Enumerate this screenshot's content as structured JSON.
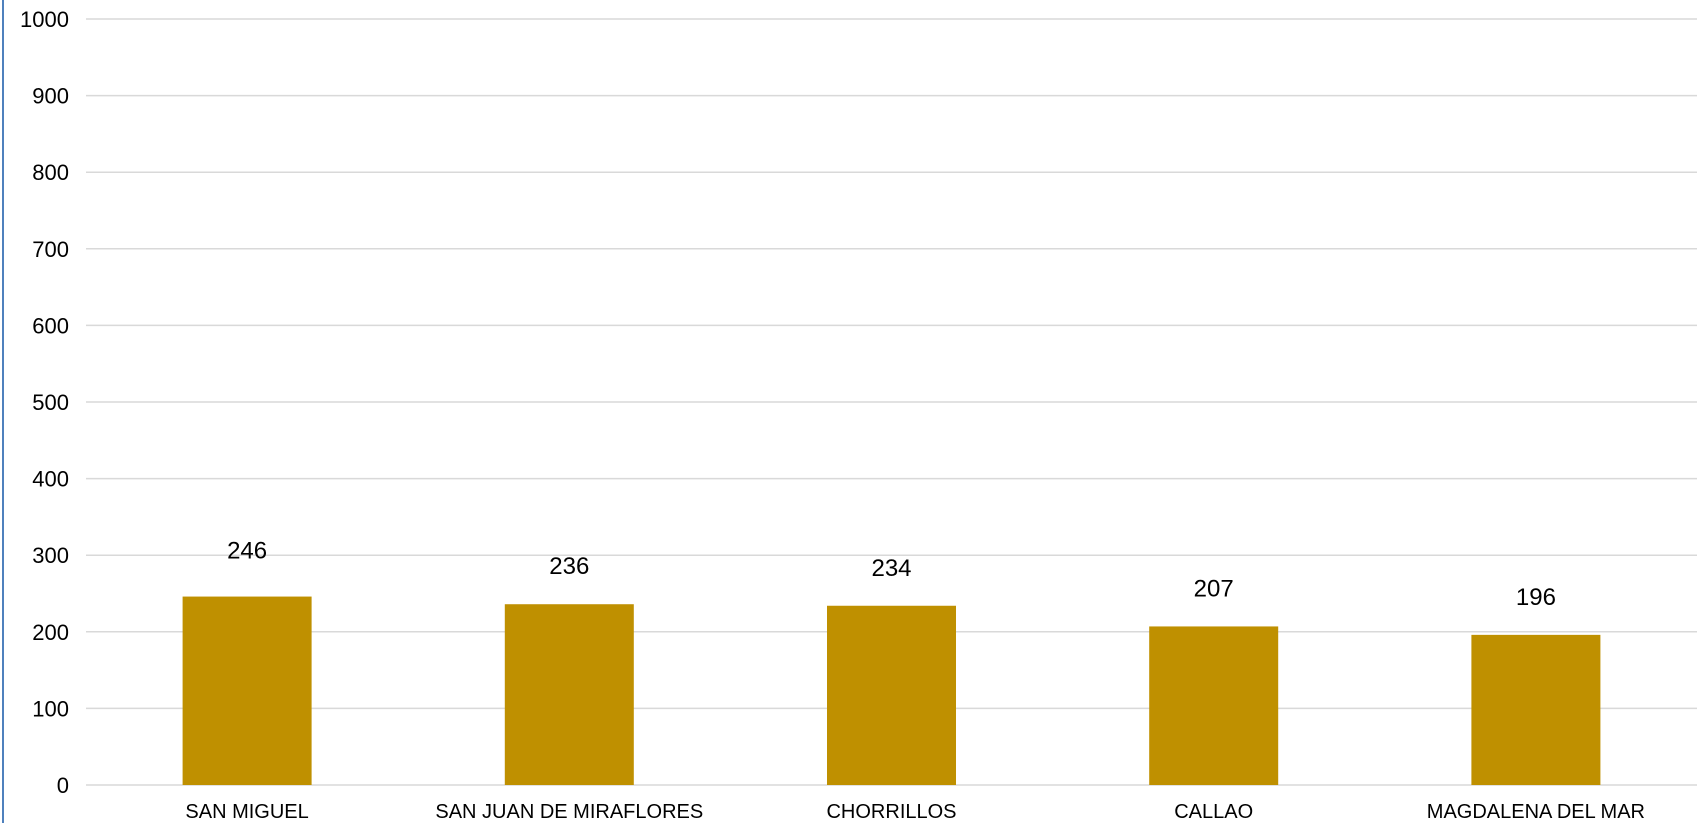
{
  "chart_data": {
    "type": "bar",
    "categories": [
      "SAN MIGUEL",
      "SAN JUAN DE MIRAFLORES",
      "CHORRILLOS",
      "CALLAO",
      "MAGDALENA DEL MAR"
    ],
    "values": [
      246,
      236,
      234,
      207,
      196
    ],
    "value_labels": [
      "246",
      "236",
      "234",
      "207",
      "196"
    ],
    "title": "",
    "xlabel": "",
    "ylabel": "",
    "ylim": [
      0,
      1000
    ],
    "yticks": [
      "0",
      "100",
      "200",
      "300",
      "400",
      "500",
      "600",
      "700",
      "800",
      "900",
      "1000"
    ],
    "grid": true,
    "legend": "none",
    "colors": {
      "bar": "#bf9000",
      "grid": "#d9d9d9",
      "frame": "#4f81bd"
    }
  }
}
